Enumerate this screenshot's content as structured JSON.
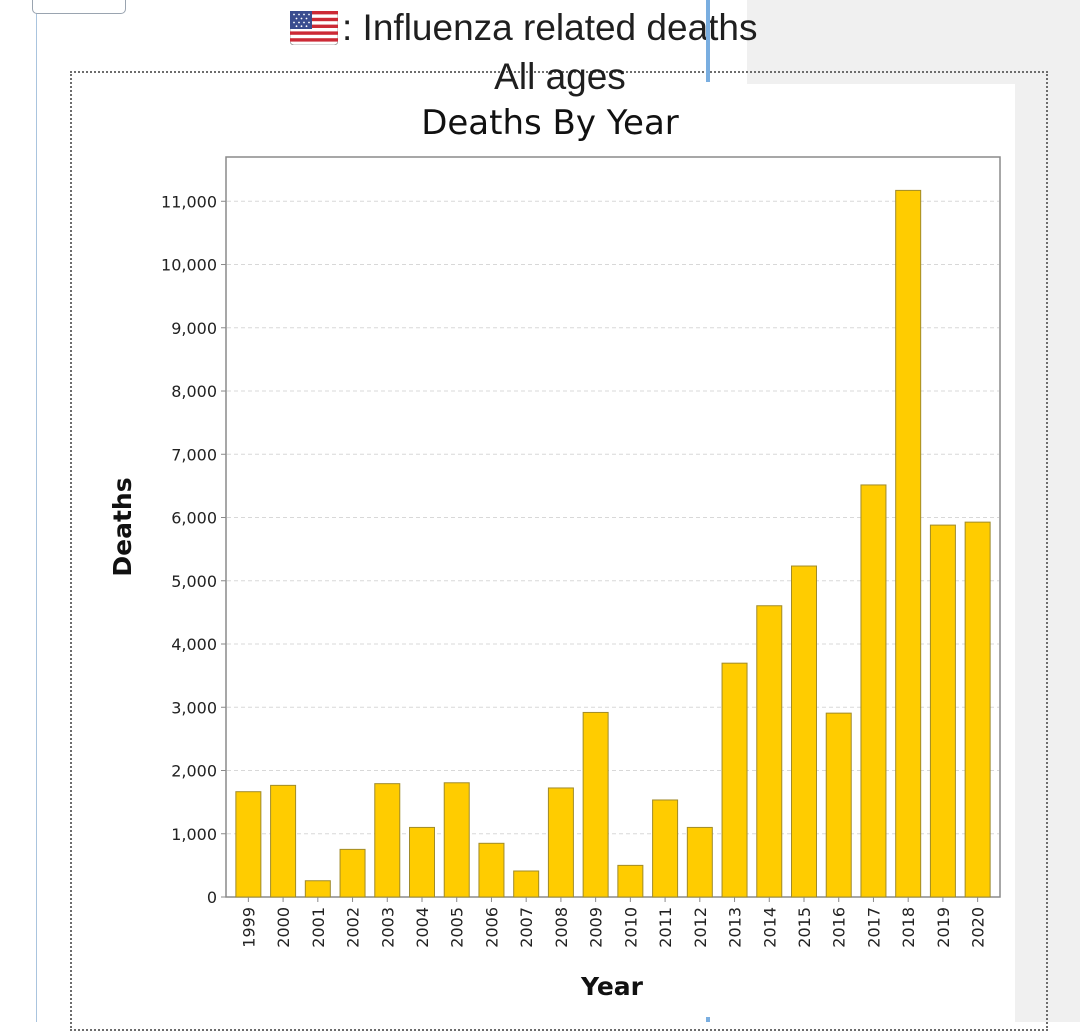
{
  "header": {
    "title": ": Influenza related deaths",
    "subtitle": "All ages",
    "flag_icon": "us-flag-icon"
  },
  "chart_data": {
    "type": "bar",
    "title": "Deaths By Year",
    "xlabel": "Year",
    "ylabel": "Deaths",
    "categories": [
      "1999",
      "2000",
      "2001",
      "2002",
      "2003",
      "2004",
      "2005",
      "2006",
      "2007",
      "2008",
      "2009",
      "2010",
      "2011",
      "2012",
      "2013",
      "2014",
      "2015",
      "2016",
      "2017",
      "2018",
      "2019",
      "2020"
    ],
    "values": [
      1665,
      1765,
      257,
      753,
      1792,
      1100,
      1806,
      849,
      411,
      1724,
      2918,
      500,
      1534,
      1100,
      3697,
      4605,
      5233,
      2907,
      6515,
      11172,
      5880,
      5927
    ],
    "ylim": [
      0,
      11700
    ],
    "yticks": [
      0,
      1000,
      2000,
      3000,
      4000,
      5000,
      6000,
      7000,
      8000,
      9000,
      10000,
      11000
    ],
    "ytick_labels": [
      "0",
      "1,000",
      "2,000",
      "3,000",
      "4,000",
      "5,000",
      "6,000",
      "7,000",
      "8,000",
      "9,000",
      "10,000",
      "11,000"
    ],
    "bar_color": "#ffcc00",
    "bar_edge_color": "#a08b2a",
    "grid": true,
    "legend": "none"
  }
}
